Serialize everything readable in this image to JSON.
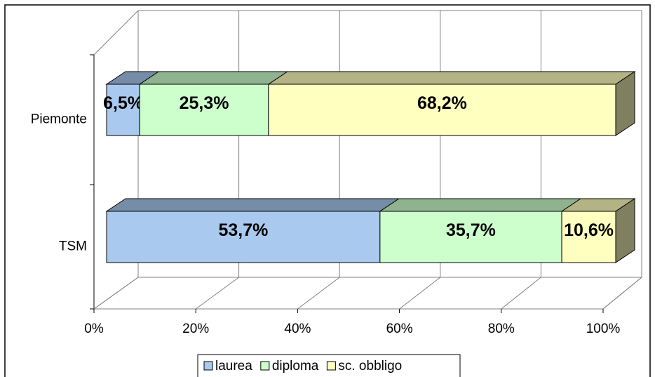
{
  "chart_data": {
    "type": "bar3d_stacked_horizontal",
    "categories": [
      "Piemonte",
      "TSM"
    ],
    "series": [
      {
        "name": "laurea",
        "color": "#a9c9ee",
        "values": [
          6.5,
          53.7
        ],
        "value_labels": [
          "6,5%",
          "53,7%"
        ]
      },
      {
        "name": "diploma",
        "color": "#ccffcc",
        "values": [
          25.3,
          35.7
        ],
        "value_labels": [
          "25,3%",
          "35,7%"
        ]
      },
      {
        "name": "sc. obbligo",
        "color": "#ffffc0",
        "values": [
          68.2,
          10.6
        ],
        "value_labels": [
          "68,2%",
          "10,6%"
        ]
      }
    ],
    "xlim": [
      0,
      100
    ],
    "xticks": [
      {
        "value": 0,
        "label": "0%"
      },
      {
        "value": 20,
        "label": "20%"
      },
      {
        "value": 40,
        "label": "40%"
      },
      {
        "value": 60,
        "label": "60%"
      },
      {
        "value": 80,
        "label": "80%"
      },
      {
        "value": 100,
        "label": "100%"
      }
    ],
    "grid": true,
    "legend": "bottom"
  }
}
